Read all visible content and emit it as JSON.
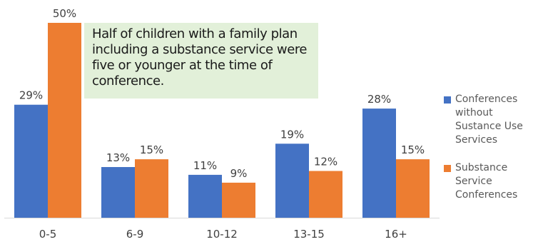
{
  "chart_data": {
    "type": "bar",
    "categories": [
      "0-5",
      "6-9",
      "10-12",
      "13-15",
      "16+"
    ],
    "series": [
      {
        "name": "Conferences without Sustance Use Services",
        "color": "#4472c4",
        "values": [
          29,
          13,
          11,
          19,
          28
        ],
        "labels": [
          "29%",
          "13%",
          "11%",
          "19%",
          "28%"
        ]
      },
      {
        "name": "Substance Service Conferences",
        "color": "#ed7d31",
        "values": [
          50,
          15,
          9,
          12,
          15
        ],
        "labels": [
          "50%",
          "15%",
          "9%",
          "12%",
          "15%"
        ]
      }
    ],
    "ylim": [
      0,
      50
    ],
    "grid": false,
    "legend_position": "right",
    "annotation": "Half of children with a family plan including a substance service were five or younger at the time of conference."
  },
  "legend": {
    "items": [
      {
        "label": "Conferences without Sustance Use Services",
        "color": "#4472c4"
      },
      {
        "label": "Substance Service Conferences",
        "color": "#ed7d31"
      }
    ]
  }
}
